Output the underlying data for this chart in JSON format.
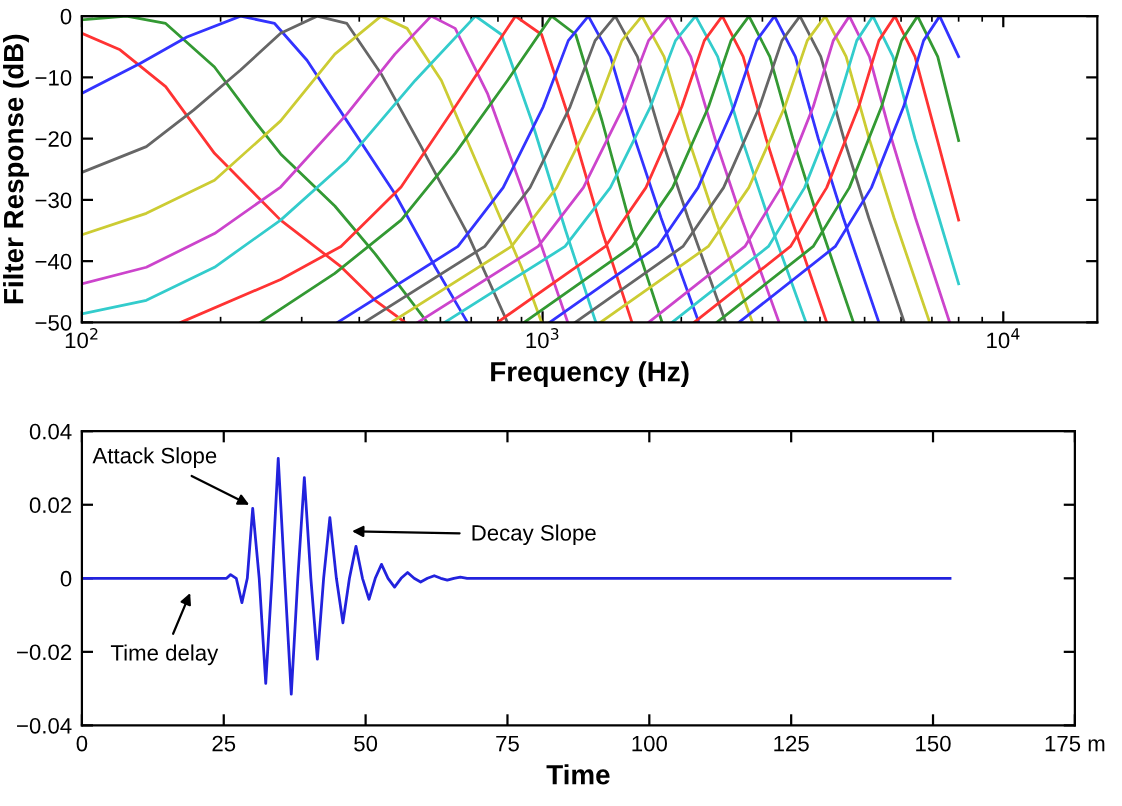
{
  "chart_data": [
    {
      "type": "line",
      "xlabel": "Frequency (Hz)",
      "ylabel": "Filter Response (dB)",
      "log": "x",
      "xlim": [
        100,
        16000
      ],
      "xticks": [
        {
          "value": 100,
          "label": "10$^{2}$"
        },
        {
          "value": 1000,
          "label": "10$^{3}$"
        },
        {
          "value": 10000,
          "label": "10$^{4}$"
        }
      ],
      "ylim": [
        -50,
        0
      ],
      "yticks": [
        {
          "value": -50,
          "label": "−50"
        },
        {
          "value": -40,
          "label": "−40"
        },
        {
          "value": -30,
          "label": "−30"
        },
        {
          "value": -20,
          "label": "−20"
        },
        {
          "value": -10,
          "label": "−10"
        },
        0
      ],
      "series": [
        {
          "color": "#ff3333",
          "x": [
            100,
            121,
            152,
            194,
            270,
            365,
            433,
            503
          ],
          "values": [
            -2.8,
            -5.5,
            -11.5,
            -22.4,
            -33.3,
            -40.9,
            -46.4,
            -50
          ]
        },
        {
          "color": "#339933",
          "x": [
            100,
            125,
            152,
            194,
            237,
            270,
            354,
            433,
            562
          ],
          "values": [
            -0.6,
            0,
            -1.2,
            -8.3,
            -17.1,
            -22.5,
            -31,
            -38.8,
            -50
          ]
        },
        {
          "color": "#3333ff",
          "x": [
            100,
            134,
            169,
            221,
            262,
            308,
            376,
            478,
            585,
            687
          ],
          "values": [
            -12.6,
            -7.7,
            -3.4,
            0,
            -1.2,
            -7.2,
            -17.1,
            -29,
            -41,
            -50
          ]
        },
        {
          "color": "#666666",
          "x": [
            100,
            138,
            175,
            221,
            270,
            324,
            376,
            446,
            545,
            687,
            839
          ],
          "values": [
            -25.5,
            -21.3,
            -15.3,
            -8.8,
            -2.8,
            0,
            -1.2,
            -9.4,
            -21.3,
            -35.5,
            -50
          ]
        },
        {
          "color": "#cccc33",
          "x": [
            100,
            138,
            194,
            270,
            354,
            446,
            508,
            603,
            736,
            900,
            995
          ],
          "values": [
            -35.7,
            -32.2,
            -26.8,
            -17.1,
            -6.2,
            0,
            -2,
            -10.5,
            -25.7,
            -41,
            -50
          ]
        },
        {
          "color": "#cc44cc",
          "x": [
            100,
            138,
            194,
            270,
            376,
            478,
            573,
            646,
            759,
            900,
            1134
          ],
          "values": [
            -43.7,
            -41,
            -35.5,
            -27.9,
            -16,
            -6.2,
            0,
            -2,
            -12.6,
            -28,
            -50
          ]
        },
        {
          "color": "#33cccc",
          "x": [
            100,
            138,
            194,
            270,
            376,
            529,
            715,
            814,
            946,
            1122,
            1305
          ],
          "values": [
            -48.6,
            -46.4,
            -41,
            -33.3,
            -23.6,
            -10.5,
            0,
            -3,
            -17,
            -35,
            -50
          ]
        },
        {
          "color": "#ff3333",
          "x": [
            164,
            270,
            365,
            493,
            646,
            873,
            995,
            1145,
            1345,
            1563
          ],
          "values": [
            -50,
            -43,
            -37.6,
            -27.9,
            -14.8,
            0,
            -3,
            -17,
            -35,
            -50
          ]
        },
        {
          "color": "#339933",
          "x": [
            244,
            354,
            493,
            646,
            839,
            1046,
            1180,
            1345,
            1563,
            1817
          ],
          "values": [
            -50,
            -42,
            -33.3,
            -22.4,
            -10.5,
            0,
            -3,
            -17,
            -35,
            -50
          ]
        },
        {
          "color": "#3333ff",
          "x": [
            359,
            655,
            821,
            1003,
            1137,
            1257,
            1404,
            1585,
            1809,
            2183
          ],
          "values": [
            -50,
            -37.6,
            -28,
            -14.8,
            -4,
            0,
            -6.6,
            -20,
            -33,
            -50
          ]
        },
        {
          "color": "#666666",
          "x": [
            410,
            749,
            939,
            1147,
            1300,
            1438,
            1606,
            1813,
            2070,
            2497
          ],
          "values": [
            -50,
            -37.6,
            -28,
            -14.8,
            -4,
            0,
            -6.6,
            -20,
            -33,
            -50
          ]
        },
        {
          "color": "#cccc33",
          "x": [
            469,
            856,
            1073,
            1312,
            1486,
            1643,
            1835,
            2072,
            2365,
            2854
          ],
          "values": [
            -50,
            -37.6,
            -28,
            -14.8,
            -4,
            0,
            -6.6,
            -20,
            -33,
            -50
          ]
        },
        {
          "color": "#cc44cc",
          "x": [
            536,
            978,
            1226,
            1498,
            1698,
            1877,
            2097,
            2367,
            2703,
            3261
          ],
          "values": [
            -50,
            -37.6,
            -28,
            -14.8,
            -4,
            0,
            -6.6,
            -20,
            -33,
            -50
          ]
        },
        {
          "color": "#33cccc",
          "x": [
            613,
            1119,
            1403,
            1714,
            1943,
            2148,
            2399,
            2708,
            3092,
            3730
          ],
          "values": [
            -50,
            -37.6,
            -28,
            -14.8,
            -4,
            0,
            -6.6,
            -20,
            -33,
            -50
          ]
        },
        {
          "color": "#ff3333",
          "x": [
            798,
            1369,
            1676,
            2005,
            2244,
            2455,
            2725,
            3056,
            3464,
            4137
          ],
          "values": [
            -50,
            -37.6,
            -28,
            -14.8,
            -4,
            0,
            -6.6,
            -20,
            -33,
            -50
          ]
        },
        {
          "color": "#339933",
          "x": [
            912,
            1564,
            1915,
            2292,
            2564,
            2805,
            3113,
            3493,
            3960,
            4728
          ],
          "values": [
            -50,
            -37.6,
            -28,
            -14.8,
            -4,
            0,
            -6.6,
            -20,
            -33,
            -50
          ]
        },
        {
          "color": "#3333ff",
          "x": [
            1036,
            1777,
            2175,
            2603,
            2913,
            3187,
            3537,
            3967,
            4498,
            5370
          ],
          "values": [
            -50,
            -37.6,
            -28,
            -14.8,
            -4,
            0,
            -6.6,
            -20,
            -33,
            -50
          ]
        },
        {
          "color": "#666666",
          "x": [
            1177,
            2017,
            2471,
            2957,
            3308,
            3619,
            4017,
            4507,
            5108,
            6099
          ],
          "values": [
            -50,
            -37.6,
            -28,
            -14.8,
            -4,
            0,
            -6.6,
            -20,
            -33,
            -50
          ]
        },
        {
          "color": "#cccc33",
          "x": [
            1335,
            2289,
            2803,
            3356,
            3754,
            4107,
            4559,
            5115,
            5797,
            6922
          ],
          "values": [
            -50,
            -37.6,
            -28,
            -14.8,
            -4,
            0,
            -6.6,
            -20,
            -33,
            -50
          ]
        },
        {
          "color": "#cc44cc",
          "x": [
            1699,
            2749,
            3294,
            3867,
            4275,
            4633,
            5122,
            5720,
            6450,
            7650
          ],
          "values": [
            -50,
            -37.6,
            -28,
            -14.8,
            -4,
            0,
            -6.6,
            -20,
            -33,
            -50
          ]
        },
        {
          "color": "#33cccc",
          "x": [
            1910,
            3092,
            3705,
            4350,
            4808,
            5211,
            5760,
            6432,
            7254,
            8000
          ],
          "values": [
            -50,
            -37.6,
            -28,
            -14.8,
            -4,
            0,
            -6.6,
            -20,
            -33,
            -43.7
          ]
        },
        {
          "color": "#ff3333",
          "x": [
            2133,
            3452,
            4137,
            4856,
            5369,
            5818,
            6432,
            7180,
            8000
          ],
          "values": [
            -50,
            -37.6,
            -28,
            -14.8,
            -4,
            0,
            -6.6,
            -20,
            -33.3
          ]
        },
        {
          "color": "#339933",
          "x": [
            2389,
            3867,
            4634,
            5440,
            6014,
            6516,
            7206,
            8000
          ],
          "values": [
            -50,
            -37.6,
            -28,
            -14.8,
            -4,
            0,
            -6.6,
            -20.3
          ]
        },
        {
          "color": "#3333ff",
          "x": [
            2668,
            4319,
            5174,
            6075,
            6714,
            7276,
            8000
          ],
          "values": [
            -50,
            -37.6,
            -28,
            -14.8,
            -4,
            0,
            -6.6
          ]
        }
      ]
    },
    {
      "type": "line",
      "xlabel": "Time",
      "xlim": [
        0,
        175
      ],
      "xticks": [
        0,
        25,
        50,
        75,
        100,
        125,
        150,
        {
          "value": 175,
          "label": "175 m"
        }
      ],
      "ylim": [
        -0.04,
        0.04
      ],
      "yticks": [
        {
          "value": -0.04,
          "label": "−0.04"
        },
        {
          "value": -0.02,
          "label": "−0.02"
        },
        0,
        0.02,
        0.04
      ],
      "annotations": [
        {
          "text": "Attack Slope",
          "x": 29.5,
          "y": 0.02
        },
        "Decay Slope",
        "Time delay"
      ],
      "series": [
        {
          "color": "#2222dd",
          "x": [
            0,
            25.5,
            26.2,
            27.2,
            28.2,
            29.15,
            30.1,
            31.25,
            32.4,
            33.5,
            34.6,
            35.75,
            36.9,
            38.05,
            39.2,
            40.35,
            41.5,
            42.6,
            43.7,
            44.85,
            46.0,
            47.15,
            48.3,
            49.45,
            50.6,
            51.7,
            52.8,
            53.95,
            55.1,
            56.25,
            57.4,
            58.55,
            59.7,
            60.9,
            62.1,
            63.25,
            64.4,
            65.55,
            66.7,
            67.9,
            153
          ],
          "values": [
            0,
            0,
            0.001,
            0,
            -0.0066,
            0,
            0.019,
            0,
            -0.0286,
            0,
            0.0326,
            0,
            -0.0315,
            0,
            0.0274,
            0,
            -0.022,
            0,
            0.0165,
            0,
            -0.0121,
            0,
            0.0087,
            0,
            -0.0057,
            0,
            0.0038,
            0,
            -0.0024,
            0,
            0.0016,
            0,
            -0.001,
            0,
            0.0007,
            0,
            -0.0005,
            0,
            0.0003,
            0,
            0
          ]
        }
      ]
    }
  ]
}
